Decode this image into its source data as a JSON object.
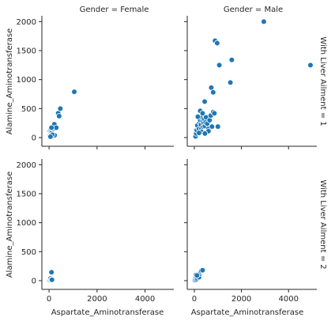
{
  "chart_data": {
    "type": "scatter",
    "xlabel": "Aspartate_Aminotransferase",
    "ylabel": "Alamine_Aminotransferase",
    "xlim": [
      -300,
      5200
    ],
    "ylim": [
      -150,
      2100
    ],
    "xticks": [
      0,
      2000,
      4000
    ],
    "yticks": [
      0,
      500,
      1000,
      1500,
      2000
    ],
    "point_color": "#1f77b4",
    "column_titles": [
      "Gender = Female",
      "Gender = Male"
    ],
    "row_titles": [
      "With Liver Ailment = 1",
      "With Liver Ailment = 2"
    ],
    "facets": [
      {
        "column": "Gender = Female",
        "row": "With Liver Ailment = 1",
        "points": [
          [
            20,
            20
          ],
          [
            35,
            30
          ],
          [
            50,
            60
          ],
          [
            60,
            90
          ],
          [
            40,
            120
          ],
          [
            75,
            140
          ],
          [
            90,
            100
          ],
          [
            110,
            80
          ],
          [
            120,
            160
          ],
          [
            150,
            175
          ],
          [
            180,
            150
          ],
          [
            200,
            200
          ],
          [
            220,
            230
          ],
          [
            250,
            160
          ],
          [
            300,
            170
          ],
          [
            170,
            30
          ],
          [
            230,
            40
          ],
          [
            80,
            40
          ],
          [
            140,
            50
          ],
          [
            380,
            420
          ],
          [
            420,
            370
          ],
          [
            470,
            500
          ],
          [
            1050,
            790
          ],
          [
            60,
            15
          ],
          [
            100,
            170
          ]
        ]
      },
      {
        "column": "Gender = Male",
        "row": "With Liver Ailment = 1",
        "points": [
          [
            50,
            20
          ],
          [
            80,
            70
          ],
          [
            100,
            130
          ],
          [
            150,
            180
          ],
          [
            130,
            210
          ],
          [
            200,
            150
          ],
          [
            220,
            260
          ],
          [
            250,
            300
          ],
          [
            280,
            220
          ],
          [
            300,
            150
          ],
          [
            320,
            350
          ],
          [
            350,
            280
          ],
          [
            380,
            190
          ],
          [
            400,
            250
          ],
          [
            420,
            320
          ],
          [
            450,
            200
          ],
          [
            480,
            260
          ],
          [
            500,
            350
          ],
          [
            550,
            240
          ],
          [
            600,
            150
          ],
          [
            650,
            300
          ],
          [
            700,
            380
          ],
          [
            750,
            190
          ],
          [
            800,
            440
          ],
          [
            850,
            420
          ],
          [
            250,
            460
          ],
          [
            150,
            360
          ],
          [
            440,
            620
          ],
          [
            720,
            860
          ],
          [
            800,
            780
          ],
          [
            1000,
            190
          ],
          [
            880,
            1670
          ],
          [
            970,
            1630
          ],
          [
            1060,
            1250
          ],
          [
            1530,
            950
          ],
          [
            1590,
            1340
          ],
          [
            2950,
            2000
          ],
          [
            4930,
            1250
          ],
          [
            300,
            100
          ],
          [
            200,
            80
          ],
          [
            600,
            110
          ],
          [
            350,
            420
          ],
          [
            450,
            70
          ]
        ]
      },
      {
        "column": "Gender = Female",
        "row": "With Liver Ailment = 2",
        "points": [
          [
            20,
            10
          ],
          [
            40,
            25
          ],
          [
            60,
            40
          ],
          [
            90,
            20
          ],
          [
            100,
            145
          ],
          [
            120,
            15
          ]
        ]
      },
      {
        "column": "Gender = Male",
        "row": "With Liver Ailment = 2",
        "points": [
          [
            20,
            10
          ],
          [
            40,
            30
          ],
          [
            60,
            60
          ],
          [
            90,
            20
          ],
          [
            120,
            45
          ],
          [
            150,
            80
          ],
          [
            180,
            100
          ],
          [
            200,
            60
          ],
          [
            230,
            120
          ],
          [
            260,
            150
          ],
          [
            300,
            170
          ],
          [
            350,
            180
          ],
          [
            70,
            100
          ],
          [
            110,
            90
          ]
        ]
      }
    ]
  }
}
